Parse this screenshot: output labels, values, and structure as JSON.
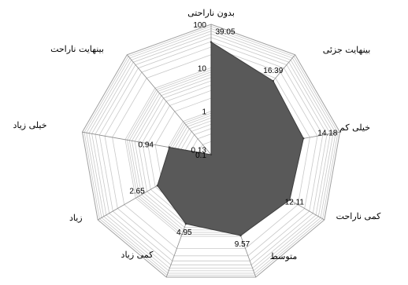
{
  "chart_data": {
    "type": "radar",
    "scale": "log",
    "categories": [
      "بدون ناراحتی",
      "بینهایت جزئی",
      "خیلی کم",
      "کمی ناراحت",
      "متوسط",
      "کمی زیاد",
      "زیاد",
      "خیلی زیاد",
      "بینهایت ناراحت"
    ],
    "values": [
      39.05,
      16.39,
      14.18,
      12.11,
      9.57,
      4.95,
      2.65,
      0.94,
      0.1
    ],
    "data_labels": [
      "39.05",
      "16.39",
      "14.18",
      "12.11",
      "9.57",
      "4.95",
      "2.65",
      "0.94",
      ""
    ],
    "axis_ticks": [
      "0.1",
      "0.13",
      "1",
      "10",
      "100"
    ],
    "axis_tick_values": [
      0.1,
      0.13,
      1,
      10,
      100
    ],
    "rlim": [
      0.1,
      100
    ],
    "fill_color": "#595959",
    "grid": true,
    "legend": false
  }
}
